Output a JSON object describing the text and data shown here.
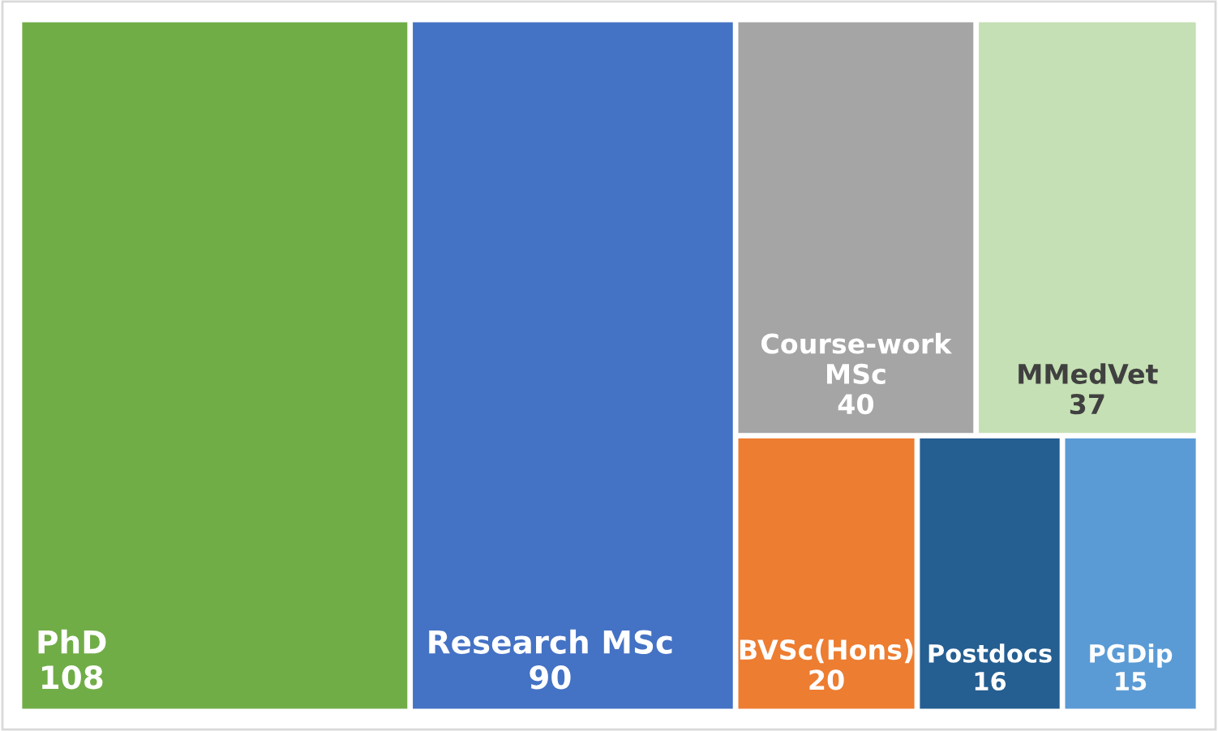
{
  "chart_data": {
    "type": "other",
    "categories": [
      "PhD",
      "Research MSc",
      "Course-work MSc",
      "MMedVet",
      "BVSc(Hons)",
      "Postdocs",
      "PGDip"
    ],
    "values": [
      108,
      90,
      40,
      37,
      20,
      16,
      15
    ],
    "colors": [
      "#70ad47",
      "#4472c4",
      "#a5a5a5",
      "#c5e0b4",
      "#ed7d31",
      "#255e91",
      "#5b9bd5"
    ],
    "data_labels": true
  }
}
